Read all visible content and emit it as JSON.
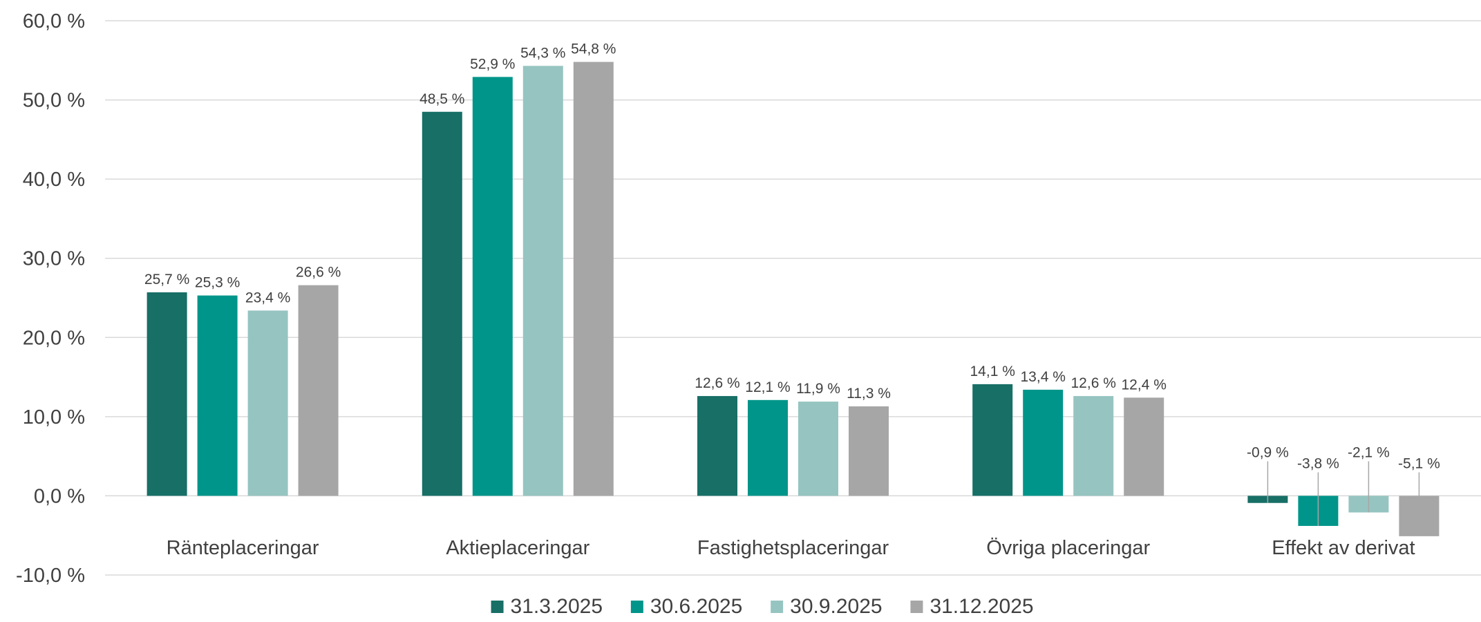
{
  "chart_data": {
    "type": "bar",
    "categories": [
      "Ränteplaceringar",
      "Aktieplaceringar",
      "Fastighetsplaceringar",
      "Övriga placeringar",
      "Effekt av derivat"
    ],
    "series": [
      {
        "name": "31.3.2025",
        "color": "#176F66",
        "values": [
          25.7,
          48.5,
          12.6,
          14.1,
          -0.9
        ],
        "labels": [
          "25,7 %",
          "48,5 %",
          "12,6 %",
          "14,1 %",
          "-0,9 %"
        ]
      },
      {
        "name": "30.6.2025",
        "color": "#00958A",
        "values": [
          25.3,
          52.9,
          12.1,
          13.4,
          -3.8
        ],
        "labels": [
          "25,3 %",
          "52,9 %",
          "12,1 %",
          "13,4 %",
          "-3,8 %"
        ]
      },
      {
        "name": "30.9.2025",
        "color": "#96C5C1",
        "values": [
          23.4,
          54.3,
          11.9,
          12.6,
          -2.1
        ],
        "labels": [
          "23,4 %",
          "54,3 %",
          "11,9 %",
          "12,6 %",
          "-2,1 %"
        ]
      },
      {
        "name": "31.12.2025",
        "color": "#A6A6A6",
        "values": [
          26.6,
          54.8,
          11.3,
          12.4,
          -5.1
        ],
        "labels": [
          "26,6 %",
          "54,8 %",
          "11,3 %",
          "12,4 %",
          "-5,1 %"
        ]
      }
    ],
    "yticks": [
      60,
      50,
      40,
      30,
      20,
      10,
      0,
      -10
    ],
    "ytick_labels": [
      "60,0 %",
      "50,0 %",
      "40,0 %",
      "30,0 %",
      "20,0 %",
      "10,0 %",
      "0,0 %",
      "-10,0 %"
    ],
    "ylim": [
      -10,
      60
    ],
    "grid": true,
    "legend_position": "bottom",
    "gridline_color": "#D9D9D9",
    "text_color": "#404040"
  }
}
